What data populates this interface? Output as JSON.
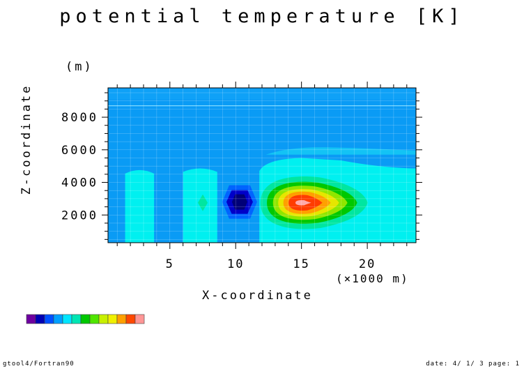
{
  "chart_data": {
    "type": "heatmap",
    "title": "potential temperature [K]",
    "xlabel": "X-coordinate",
    "ylabel": "Z-coordinate",
    "xunit": "(×1000 m)",
    "yunit": "(m)",
    "xlim": [
      0.3,
      23.7
    ],
    "ylim": [
      300,
      9800
    ],
    "x_ticks": [
      5,
      10,
      15,
      20
    ],
    "y_ticks": [
      2000,
      4000,
      6000,
      8000
    ],
    "grid": true,
    "background_level_color": "#0a9bf5",
    "features": [
      {
        "kind": "column",
        "x_range": [
          1.6,
          3.8
        ],
        "z_top": 4800,
        "level_color": "#00f0f0"
      },
      {
        "kind": "column",
        "x_range": [
          6.0,
          8.6
        ],
        "z_top": 4900,
        "level_color": "#00f0f0"
      },
      {
        "kind": "column",
        "x_range": [
          11.8,
          23.7
        ],
        "z_top": 4800,
        "level_color": "#00f0f0"
      },
      {
        "kind": "cold_anomaly",
        "x_center": 10.3,
        "z_center": 2800,
        "levels": [
          "#0064ff",
          "#0000c8",
          "#000078"
        ]
      },
      {
        "kind": "warm_anomaly",
        "x_center": 15.0,
        "z_center": 2750,
        "levels": [
          "#00e6a0",
          "#00c800",
          "#90e600",
          "#e6e600",
          "#ffa000",
          "#ff3c00",
          "#ffaaaa"
        ]
      },
      {
        "kind": "small_blob",
        "x_center": 7.5,
        "z_center": 2750,
        "level_color": "#00e6a0"
      }
    ]
  },
  "colorbar": [
    "#6e00a0",
    "#0000b4",
    "#0050ff",
    "#00a0ff",
    "#00e6ff",
    "#00e6b4",
    "#00c800",
    "#50e600",
    "#c8f000",
    "#f0f000",
    "#ffa000",
    "#ff4800",
    "#ff9696"
  ],
  "footer": {
    "left": "gtool4/Fortran90",
    "right": "date: 4/ 1/ 3 page: 1"
  }
}
